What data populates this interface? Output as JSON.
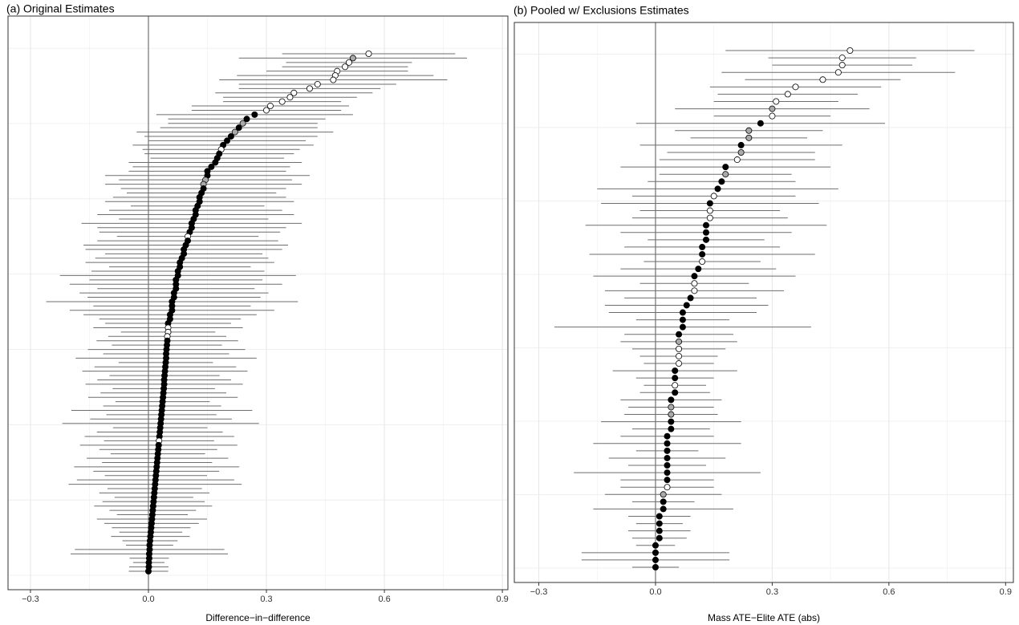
{
  "chart_data": [
    {
      "type": "dot",
      "title": "(a) Original Estimates",
      "x_label": "Difference−in−difference",
      "xlim": [
        -0.357,
        0.914
      ],
      "xticks": [
        {
          "value": -0.3,
          "label": "−0.3"
        },
        {
          "value": 0,
          "label": "0.0"
        },
        0.3,
        0.6,
        0.9
      ],
      "grid": true,
      "values": [
        0.56,
        0.52,
        0.51,
        0.5,
        0.48,
        0.475,
        0.47,
        0.43,
        0.41,
        0.37,
        0.36,
        0.34,
        0.31,
        0.3,
        0.27,
        0.25,
        0.24,
        0.23,
        0.22,
        0.21,
        0.2,
        0.19,
        0.185,
        0.18,
        0.175,
        0.17,
        0.16,
        0.15,
        0.15,
        0.145,
        0.14,
        0.14,
        0.135,
        0.13,
        0.13,
        0.125,
        0.12,
        0.12,
        0.115,
        0.11,
        0.11,
        0.105,
        0.1,
        0.1,
        0.095,
        0.09,
        0.09,
        0.085,
        0.08,
        0.08,
        0.075,
        0.075,
        0.07,
        0.07,
        0.07,
        0.065,
        0.065,
        0.06,
        0.06,
        0.06,
        0.055,
        0.055,
        0.05,
        0.05,
        0.05,
        0.048,
        0.048,
        0.047,
        0.046,
        0.045,
        0.045,
        0.044,
        0.043,
        0.042,
        0.041,
        0.04,
        0.04,
        0.039,
        0.038,
        0.037,
        0.036,
        0.035,
        0.034,
        0.033,
        0.032,
        0.031,
        0.03,
        0.029,
        0.028,
        0.027,
        0.026,
        0.025,
        0.024,
        0.023,
        0.022,
        0.021,
        0.02,
        0.019,
        0.018,
        0.017,
        0.016,
        0.015,
        0.014,
        0.013,
        0.012,
        0.011,
        0.01,
        0.009,
        0.008,
        0.007,
        0.006,
        0.005,
        0.004,
        0.003,
        0.003,
        0.002,
        0.002,
        0.001,
        0.001,
        0.0
      ],
      "errors": [
        0.22,
        0.29,
        0.16,
        0.16,
        0.18,
        0.25,
        0.29,
        0.2,
        0.18,
        0.2,
        0.17,
        0.15,
        0.2,
        0.19,
        0.25,
        0.2,
        0.19,
        0.2,
        0.25,
        0.22,
        0.2,
        0.23,
        0.2,
        0.19,
        0.17,
        0.22,
        0.2,
        0.2,
        0.26,
        0.22,
        0.25,
        0.21,
        0.19,
        0.22,
        0.24,
        0.17,
        0.22,
        0.25,
        0.19,
        0.28,
        0.24,
        0.23,
        0.18,
        0.23,
        0.26,
        0.25,
        0.2,
        0.22,
        0.24,
        0.18,
        0.22,
        0.3,
        0.22,
        0.27,
        0.2,
        0.24,
        0.22,
        0.32,
        0.2,
        0.26,
        0.22,
        0.18,
        0.16,
        0.19,
        0.12,
        0.15,
        0.18,
        0.14,
        0.2,
        0.16,
        0.23,
        0.12,
        0.18,
        0.21,
        0.14,
        0.17,
        0.2,
        0.13,
        0.16,
        0.19,
        0.12,
        0.15,
        0.23,
        0.14,
        0.18,
        0.25,
        0.12,
        0.16,
        0.19,
        0.14,
        0.2,
        0.15,
        0.12,
        0.18,
        0.14,
        0.21,
        0.16,
        0.13,
        0.2,
        0.22,
        0.12,
        0.14,
        0.1,
        0.13,
        0.15,
        0.11,
        0.09,
        0.14,
        0.12,
        0.1,
        0.08,
        0.1,
        0.07,
        0.06,
        0.19,
        0.2,
        0.05,
        0.04,
        0.05,
        0.05
      ],
      "colors": [
        "#fff",
        "#aaa",
        "#fff",
        "#fff",
        "#fff",
        "#fff",
        "#fff",
        "#fff",
        "#fff",
        "#fff",
        "#fff",
        "#fff",
        "#fff",
        "#fff",
        "#000",
        "#000",
        "#aaa",
        "#000",
        "#aaa",
        "#000",
        "#000",
        "#000",
        "#fff",
        "#000",
        "#000",
        "#000",
        "#000",
        "#000",
        "#000",
        "#aaa",
        "#aaa",
        "#000",
        "#000",
        "#000",
        "#000",
        "#000",
        "#000",
        "#000",
        "#000",
        "#000",
        "#000",
        "#000",
        "#fff",
        "#000",
        "#000",
        "#000",
        "#000",
        "#000",
        "#000",
        "#000",
        "#000",
        "#000",
        "#000",
        "#000",
        "#000",
        "#000",
        "#000",
        "#000",
        "#000",
        "#000",
        "#000",
        "#000",
        "#000",
        "#fff",
        "#fff",
        "#fff",
        "#000",
        "#000",
        "#000",
        "#000",
        "#000",
        "#000",
        "#000",
        "#000",
        "#000",
        "#000",
        "#000",
        "#000",
        "#000",
        "#000",
        "#000",
        "#000",
        "#000",
        "#000",
        "#000",
        "#000",
        "#000",
        "#000",
        "#000",
        "#fff",
        "#000",
        "#000",
        "#000",
        "#000",
        "#000",
        "#000",
        "#000",
        "#000",
        "#000",
        "#000",
        "#000",
        "#000",
        "#000",
        "#000",
        "#000",
        "#000",
        "#000",
        "#000",
        "#000",
        "#000",
        "#000",
        "#000",
        "#000",
        "#000",
        "#000",
        "#000",
        "#000",
        "#000",
        "#000",
        "#000"
      ]
    },
    {
      "type": "dot",
      "title": "(b) Pooled w/ Exclusions Estimates",
      "x_label": "Mass ATE−Elite ATE (abs)",
      "xlim": [
        -0.363,
        0.92
      ],
      "xticks": [
        {
          "value": -0.3,
          "label": "−0.3"
        },
        {
          "value": 0,
          "label": "0.0"
        },
        0.3,
        0.6,
        0.9
      ],
      "grid": true,
      "values": [
        0.5,
        0.48,
        0.48,
        0.47,
        0.43,
        0.36,
        0.34,
        0.31,
        0.3,
        0.3,
        0.27,
        0.24,
        0.24,
        0.22,
        0.22,
        0.21,
        0.18,
        0.18,
        0.17,
        0.16,
        0.15,
        0.14,
        0.14,
        0.14,
        0.13,
        0.13,
        0.13,
        0.12,
        0.12,
        0.12,
        0.11,
        0.1,
        0.1,
        0.1,
        0.09,
        0.08,
        0.07,
        0.07,
        0.07,
        0.06,
        0.06,
        0.06,
        0.06,
        0.06,
        0.05,
        0.05,
        0.05,
        0.05,
        0.04,
        0.04,
        0.04,
        0.04,
        0.04,
        0.03,
        0.03,
        0.03,
        0.03,
        0.03,
        0.03,
        0.03,
        0.03,
        0.02,
        0.02,
        0.02,
        0.01,
        0.01,
        0.01,
        0.01,
        0.0,
        0.0,
        0.0,
        0.0
      ],
      "errors": [
        0.32,
        0.19,
        0.18,
        0.3,
        0.2,
        0.22,
        0.18,
        0.16,
        0.25,
        0.15,
        0.32,
        0.19,
        0.15,
        0.26,
        0.19,
        0.2,
        0.27,
        0.17,
        0.19,
        0.31,
        0.21,
        0.28,
        0.18,
        0.2,
        0.31,
        0.22,
        0.15,
        0.2,
        0.29,
        0.15,
        0.2,
        0.26,
        0.14,
        0.23,
        0.17,
        0.21,
        0.19,
        0.12,
        0.33,
        0.14,
        0.15,
        0.12,
        0.1,
        0.09,
        0.16,
        0.1,
        0.08,
        0.09,
        0.13,
        0.11,
        0.12,
        0.18,
        0.1,
        0.12,
        0.19,
        0.08,
        0.15,
        0.1,
        0.24,
        0.12,
        0.12,
        0.15,
        0.08,
        0.18,
        0.08,
        0.06,
        0.08,
        0.07,
        0.05,
        0.19,
        0.19,
        0.06
      ],
      "colors": [
        "#fff",
        "#fff",
        "#fff",
        "#fff",
        "#fff",
        "#fff",
        "#fff",
        "#fff",
        "#aaa",
        "#fff",
        "#000",
        "#aaa",
        "#aaa",
        "#000",
        "#aaa",
        "#fff",
        "#000",
        "#aaa",
        "#000",
        "#000",
        "#fff",
        "#000",
        "#fff",
        "#fff",
        "#000",
        "#000",
        "#000",
        "#000",
        "#000",
        "#fff",
        "#000",
        "#000",
        "#fff",
        "#fff",
        "#000",
        "#000",
        "#000",
        "#000",
        "#000",
        "#000",
        "#aaa",
        "#fff",
        "#fff",
        "#fff",
        "#000",
        "#000",
        "#fff",
        "#000",
        "#000",
        "#aaa",
        "#aaa",
        "#000",
        "#000",
        "#000",
        "#000",
        "#000",
        "#000",
        "#000",
        "#000",
        "#000",
        "#fff",
        "#aaa",
        "#000",
        "#000",
        "#000",
        "#000",
        "#000",
        "#000",
        "#000",
        "#000",
        "#000",
        "#000"
      ]
    }
  ]
}
